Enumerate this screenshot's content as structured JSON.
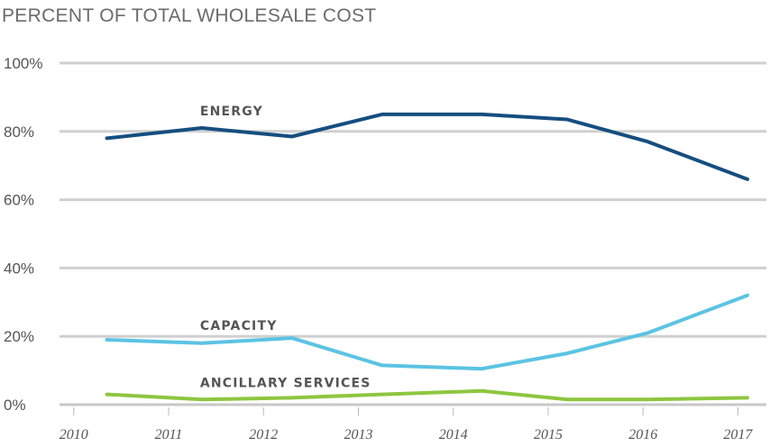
{
  "chart_data": {
    "type": "line",
    "title": "PERCENT OF TOTAL WHOLESALE COST",
    "xlabel": "",
    "ylabel": "",
    "x": [
      2010.35,
      2011.35,
      2012.3,
      2013.25,
      2014.3,
      2015.2,
      2016.05,
      2017.1
    ],
    "x_ticks": [
      "2010",
      "2011",
      "2012",
      "2013",
      "2014",
      "2015",
      "2016",
      "2017"
    ],
    "y_ticks": [
      "100%",
      "80%",
      "60%",
      "40%",
      "20%",
      "0%"
    ],
    "xlim": [
      2009.85,
      2017.3
    ],
    "ylim": [
      0,
      100
    ],
    "grid": true,
    "legend": "inline labels",
    "series": [
      {
        "name": "ENERGY",
        "color": "#154e80",
        "values": [
          78,
          81,
          78.5,
          85,
          85,
          83.5,
          77,
          66
        ]
      },
      {
        "name": "CAPACITY",
        "color": "#5bc3e3",
        "values": [
          19,
          18,
          19.5,
          11.5,
          10.5,
          15,
          21,
          32
        ]
      },
      {
        "name": "ANCILLARY SERVICES",
        "color": "#8dc63f",
        "values": [
          3,
          1.5,
          2,
          3,
          4,
          1.5,
          1.5,
          2
        ]
      }
    ]
  }
}
